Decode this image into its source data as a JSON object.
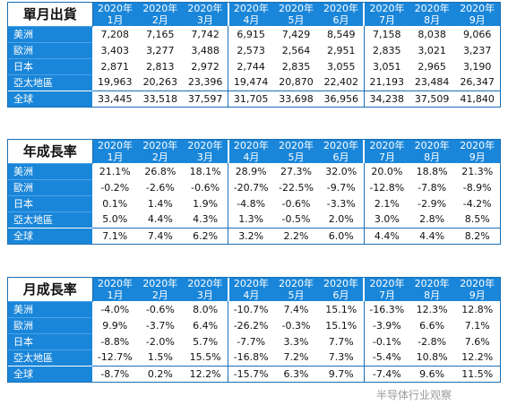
{
  "colors": {
    "accent": "#1a86d9",
    "border": "#1a6fb5"
  },
  "watermark": "半导体行业观察",
  "months": [
    {
      "year": "2020年",
      "month": "1月"
    },
    {
      "year": "2020年",
      "month": "2月"
    },
    {
      "year": "2020年",
      "month": "3月"
    },
    {
      "year": "2020年",
      "month": "4月"
    },
    {
      "year": "2020年",
      "month": "5月"
    },
    {
      "year": "2020年",
      "month": "6月"
    },
    {
      "year": "2020年",
      "month": "7月"
    },
    {
      "year": "2020年",
      "month": "8月"
    },
    {
      "year": "2020年",
      "month": "9月"
    }
  ],
  "tables": [
    {
      "title": "單月出貨",
      "rows": [
        {
          "label": "美洲",
          "values": [
            "7,208",
            "7,165",
            "7,742",
            "6,915",
            "7,429",
            "8,549",
            "7,158",
            "8,038",
            "9,066"
          ]
        },
        {
          "label": "歐洲",
          "values": [
            "3,403",
            "3,277",
            "3,488",
            "2,573",
            "2,564",
            "2,951",
            "2,835",
            "3,021",
            "3,237"
          ]
        },
        {
          "label": "日本",
          "values": [
            "2,871",
            "2,813",
            "2,972",
            "2,744",
            "2,835",
            "3,055",
            "3,051",
            "2,965",
            "3,190"
          ]
        },
        {
          "label": "亞太地區",
          "values": [
            "19,963",
            "20,263",
            "23,396",
            "19,474",
            "20,870",
            "22,402",
            "21,193",
            "23,484",
            "26,347"
          ]
        },
        {
          "label": "全球",
          "values": [
            "33,445",
            "33,518",
            "37,597",
            "31,705",
            "33,698",
            "36,956",
            "34,238",
            "37,509",
            "41,840"
          ]
        }
      ]
    },
    {
      "title": "年成長率",
      "rows": [
        {
          "label": "美洲",
          "values": [
            "21.1%",
            "26.8%",
            "18.1%",
            "28.9%",
            "27.3%",
            "32.0%",
            "20.0%",
            "18.8%",
            "21.3%"
          ]
        },
        {
          "label": "歐洲",
          "values": [
            "-0.2%",
            "-2.6%",
            "-0.6%",
            "-20.7%",
            "-22.5%",
            "-9.7%",
            "-12.8%",
            "-7.8%",
            "-8.9%"
          ]
        },
        {
          "label": "日本",
          "values": [
            "0.1%",
            "1.4%",
            "1.9%",
            "-4.8%",
            "-0.6%",
            "-3.3%",
            "2.1%",
            "-2.9%",
            "-4.2%"
          ]
        },
        {
          "label": "亞太地區",
          "values": [
            "5.0%",
            "4.4%",
            "4.3%",
            "1.3%",
            "-0.5%",
            "2.0%",
            "3.0%",
            "2.8%",
            "8.5%"
          ]
        },
        {
          "label": "全球",
          "values": [
            "7.1%",
            "7.4%",
            "6.2%",
            "3.2%",
            "2.2%",
            "6.0%",
            "4.4%",
            "4.4%",
            "8.2%"
          ]
        }
      ]
    },
    {
      "title": "月成長率",
      "rows": [
        {
          "label": "美洲",
          "values": [
            "-4.0%",
            "-0.6%",
            "8.0%",
            "-10.7%",
            "7.4%",
            "15.1%",
            "-16.3%",
            "12.3%",
            "12.8%"
          ]
        },
        {
          "label": "歐洲",
          "values": [
            "9.9%",
            "-3.7%",
            "6.4%",
            "-26.2%",
            "-0.3%",
            "15.1%",
            "-3.9%",
            "6.6%",
            "7.1%"
          ]
        },
        {
          "label": "日本",
          "values": [
            "-8.8%",
            "-2.0%",
            "5.7%",
            "-7.7%",
            "3.3%",
            "7.7%",
            "-0.1%",
            "-2.8%",
            "7.6%"
          ]
        },
        {
          "label": "亞太地區",
          "values": [
            "-12.7%",
            "1.5%",
            "15.5%",
            "-16.8%",
            "7.2%",
            "7.3%",
            "-5.4%",
            "10.8%",
            "12.2%"
          ]
        },
        {
          "label": "全球",
          "values": [
            "-8.7%",
            "0.2%",
            "12.2%",
            "-15.7%",
            "6.3%",
            "9.7%",
            "-7.4%",
            "9.6%",
            "11.5%"
          ]
        }
      ]
    }
  ]
}
